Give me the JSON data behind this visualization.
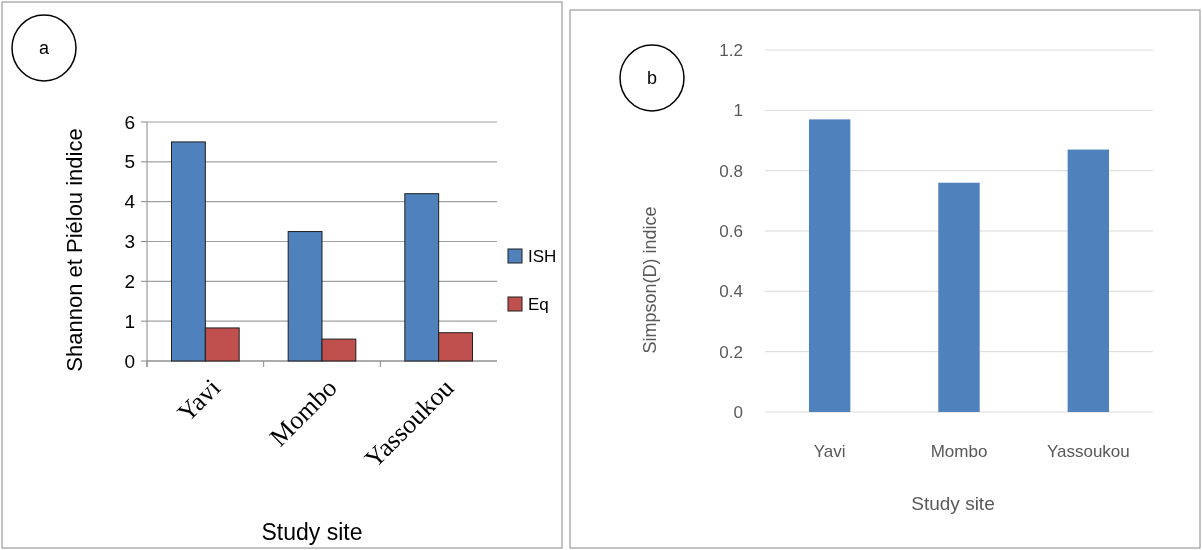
{
  "chart_data": [
    {
      "type": "bar",
      "annotations": [
        "a"
      ],
      "xlabel": "Study site",
      "ylabel": "Shannon et Piélou indice",
      "categories": [
        "Yavi",
        "Mombo",
        "Yassoukou"
      ],
      "series": [
        {
          "name": "ISH",
          "color": "#4f81bd",
          "values": [
            5.5,
            3.25,
            4.2
          ]
        },
        {
          "name": "Eq",
          "color": "#c0504d",
          "values": [
            0.83,
            0.55,
            0.71
          ]
        }
      ],
      "ylim": [
        0,
        6
      ],
      "yticks": [
        0,
        1,
        2,
        3,
        4,
        5,
        6
      ],
      "grid": "y",
      "legend": "right"
    },
    {
      "type": "bar",
      "annotations": [
        "b"
      ],
      "xlabel": "Study site",
      "ylabel": "Simpson(D) indice",
      "categories": [
        "Yavi",
        "Mombo",
        "Yassoukou"
      ],
      "series": [
        {
          "color": "#4f81bd",
          "values": [
            0.97,
            0.76,
            0.87
          ]
        }
      ],
      "ylim": [
        0,
        1.2
      ],
      "yticks": [
        0,
        0.2,
        0.4,
        0.6,
        0.8,
        1,
        1.2
      ],
      "grid": "y"
    }
  ]
}
